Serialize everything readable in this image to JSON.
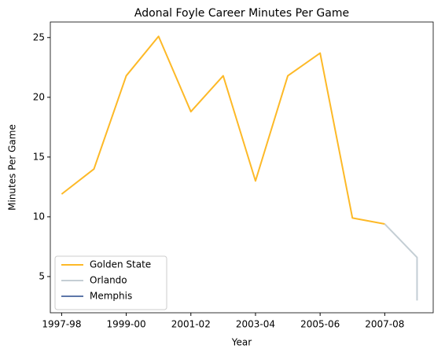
{
  "chart_data": {
    "type": "line",
    "title": "Adonal Foyle Career Minutes Per Game",
    "x_label": "Year",
    "y_label": "Minutes Per Game",
    "series": [
      {
        "name": "Golden State",
        "color": "#FDB927",
        "x": [
          1997,
          1998,
          1999,
          2000,
          2001,
          2002,
          2003,
          2004,
          2005,
          2006,
          2007
        ],
        "values": [
          11.9,
          14.0,
          21.8,
          25.1,
          18.8,
          21.8,
          13.0,
          21.8,
          23.7,
          9.9,
          9.4
        ]
      },
      {
        "name": "Orlando",
        "color": "#C4CED4",
        "x": [
          2007,
          2008,
          2008
        ],
        "values": [
          9.4,
          6.6,
          3.0
        ]
      },
      {
        "name": "Memphis",
        "color": "#5D76A9",
        "x": [
          2008
        ],
        "values": [
          3.0
        ]
      }
    ],
    "xlim": [
      1996.65,
      2008.5
    ],
    "ylim": [
      1.97,
      26.3
    ],
    "xticks": [
      {
        "value": 1997,
        "label": "1997-98"
      },
      {
        "value": 1999,
        "label": "1999-00"
      },
      {
        "value": 2001,
        "label": "2001-02"
      },
      {
        "value": 2003,
        "label": "2003-04"
      },
      {
        "value": 2005,
        "label": "2005-06"
      },
      {
        "value": 2007,
        "label": "2007-08"
      }
    ],
    "yticks": [
      5,
      10,
      15,
      20,
      25
    ],
    "legend": "lower left"
  }
}
